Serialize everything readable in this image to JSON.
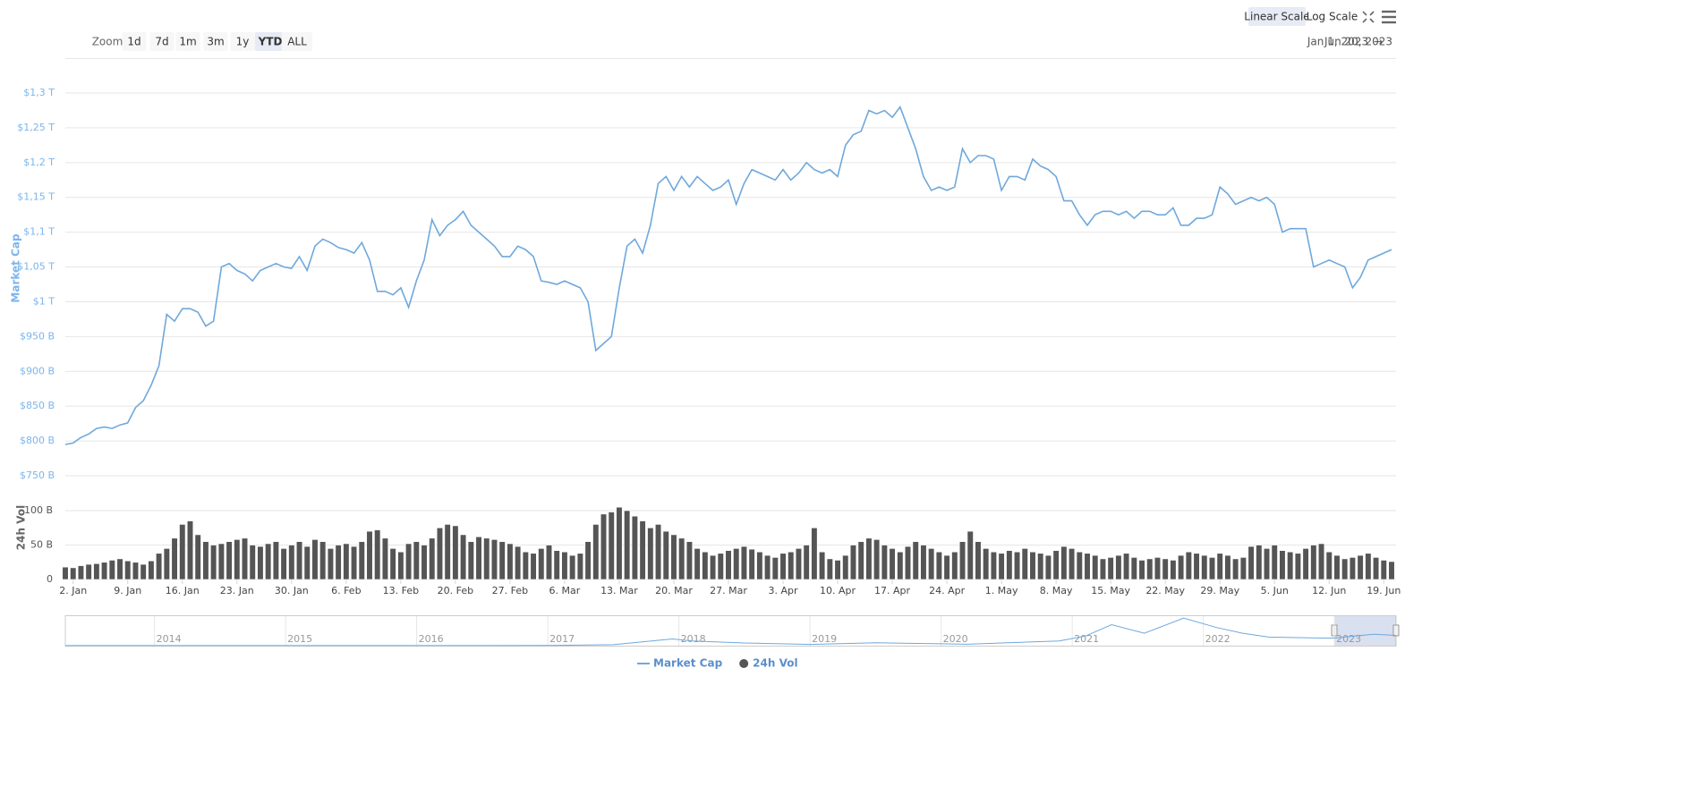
{
  "toolbar": {
    "zoom_label": "Zoom",
    "zoom_buttons": [
      "1d",
      "7d",
      "1m",
      "3m",
      "1y",
      "YTD",
      "ALL"
    ],
    "active_zoom": "YTD",
    "scale_buttons": [
      "Linear Scale",
      "Log Scale"
    ],
    "active_scale": "Linear Scale",
    "range_from": "Jan 1, 2023",
    "range_arrow": "→",
    "range_to": "Jun 20, 2023"
  },
  "chart_data": [
    {
      "type": "line",
      "y_label": "Market Cap",
      "y2_label": "24h Vol",
      "grid": true,
      "x": [
        "2023-01-01",
        "2023-01-02",
        "2023-01-03",
        "2023-01-04",
        "2023-01-05",
        "2023-01-06",
        "2023-01-07",
        "2023-01-08",
        "2023-01-09",
        "2023-01-10",
        "2023-01-11",
        "2023-01-12",
        "2023-01-13",
        "2023-01-14",
        "2023-01-15",
        "2023-01-16",
        "2023-01-17",
        "2023-01-18",
        "2023-01-19",
        "2023-01-20",
        "2023-01-21",
        "2023-01-22",
        "2023-01-23",
        "2023-01-24",
        "2023-01-25",
        "2023-01-26",
        "2023-01-27",
        "2023-01-28",
        "2023-01-29",
        "2023-01-30",
        "2023-01-31",
        "2023-02-01",
        "2023-02-02",
        "2023-02-03",
        "2023-02-04",
        "2023-02-05",
        "2023-02-06",
        "2023-02-07",
        "2023-02-08",
        "2023-02-09",
        "2023-02-10",
        "2023-02-11",
        "2023-02-12",
        "2023-02-13",
        "2023-02-14",
        "2023-02-15",
        "2023-02-16",
        "2023-02-17",
        "2023-02-18",
        "2023-02-19",
        "2023-02-20",
        "2023-02-21",
        "2023-02-22",
        "2023-02-23",
        "2023-02-24",
        "2023-02-25",
        "2023-02-26",
        "2023-02-27",
        "2023-02-28",
        "2023-03-01",
        "2023-03-02",
        "2023-03-03",
        "2023-03-04",
        "2023-03-05",
        "2023-03-06",
        "2023-03-07",
        "2023-03-08",
        "2023-03-09",
        "2023-03-10",
        "2023-03-11",
        "2023-03-12",
        "2023-03-13",
        "2023-03-14",
        "2023-03-15",
        "2023-03-16",
        "2023-03-17",
        "2023-03-18",
        "2023-03-19",
        "2023-03-20",
        "2023-03-21",
        "2023-03-22",
        "2023-03-23",
        "2023-03-24",
        "2023-03-25",
        "2023-03-26",
        "2023-03-27",
        "2023-03-28",
        "2023-03-29",
        "2023-03-30",
        "2023-03-31",
        "2023-04-01",
        "2023-04-02",
        "2023-04-03",
        "2023-04-04",
        "2023-04-05",
        "2023-04-06",
        "2023-04-07",
        "2023-04-08",
        "2023-04-09",
        "2023-04-10",
        "2023-04-11",
        "2023-04-12",
        "2023-04-13",
        "2023-04-14",
        "2023-04-15",
        "2023-04-16",
        "2023-04-17",
        "2023-04-18",
        "2023-04-19",
        "2023-04-20",
        "2023-04-21",
        "2023-04-22",
        "2023-04-23",
        "2023-04-24",
        "2023-04-25",
        "2023-04-26",
        "2023-04-27",
        "2023-04-28",
        "2023-04-29",
        "2023-04-30",
        "2023-05-01",
        "2023-05-02",
        "2023-05-03",
        "2023-05-04",
        "2023-05-05",
        "2023-05-06",
        "2023-05-07",
        "2023-05-08",
        "2023-05-09",
        "2023-05-10",
        "2023-05-11",
        "2023-05-12",
        "2023-05-13",
        "2023-05-14",
        "2023-05-15",
        "2023-05-16",
        "2023-05-17",
        "2023-05-18",
        "2023-05-19",
        "2023-05-20",
        "2023-05-21",
        "2023-05-22",
        "2023-05-23",
        "2023-05-24",
        "2023-05-25",
        "2023-05-26",
        "2023-05-27",
        "2023-05-28",
        "2023-05-29",
        "2023-05-30",
        "2023-05-31",
        "2023-06-01",
        "2023-06-02",
        "2023-06-03",
        "2023-06-04",
        "2023-06-05",
        "2023-06-06",
        "2023-06-07",
        "2023-06-08",
        "2023-06-09",
        "2023-06-10",
        "2023-06-11",
        "2023-06-12",
        "2023-06-13",
        "2023-06-14",
        "2023-06-15",
        "2023-06-16",
        "2023-06-17",
        "2023-06-18",
        "2023-06-19",
        "2023-06-20"
      ],
      "xlim": [
        "2023-01-01",
        "2023-06-20"
      ],
      "xticks": [
        {
          "value": "2023-01-02",
          "label": "2. Jan"
        },
        {
          "value": "2023-01-09",
          "label": "9. Jan"
        },
        {
          "value": "2023-01-16",
          "label": "16. Jan"
        },
        {
          "value": "2023-01-23",
          "label": "23. Jan"
        },
        {
          "value": "2023-01-30",
          "label": "30. Jan"
        },
        {
          "value": "2023-02-06",
          "label": "6. Feb"
        },
        {
          "value": "2023-02-13",
          "label": "13. Feb"
        },
        {
          "value": "2023-02-20",
          "label": "20. Feb"
        },
        {
          "value": "2023-02-27",
          "label": "27. Feb"
        },
        {
          "value": "2023-03-06",
          "label": "6. Mar"
        },
        {
          "value": "2023-03-13",
          "label": "13. Mar"
        },
        {
          "value": "2023-03-20",
          "label": "20. Mar"
        },
        {
          "value": "2023-03-27",
          "label": "27. Mar"
        },
        {
          "value": "2023-04-03",
          "label": "3. Apr"
        },
        {
          "value": "2023-04-10",
          "label": "10. Apr"
        },
        {
          "value": "2023-04-17",
          "label": "17. Apr"
        },
        {
          "value": "2023-04-24",
          "label": "24. Apr"
        },
        {
          "value": "2023-05-01",
          "label": "1. May"
        },
        {
          "value": "2023-05-08",
          "label": "8. May"
        },
        {
          "value": "2023-05-15",
          "label": "15. May"
        },
        {
          "value": "2023-05-22",
          "label": "22. May"
        },
        {
          "value": "2023-05-29",
          "label": "29. May"
        },
        {
          "value": "2023-06-05",
          "label": "5. Jun"
        },
        {
          "value": "2023-06-12",
          "label": "12. Jun"
        },
        {
          "value": "2023-06-19",
          "label": "19. Jun"
        }
      ],
      "ylim": [
        750,
        1300
      ],
      "yticks": [
        {
          "value": 750,
          "label": "$750 B"
        },
        {
          "value": 800,
          "label": "$800 B"
        },
        {
          "value": 850,
          "label": "$850 B"
        },
        {
          "value": 900,
          "label": "$900 B"
        },
        {
          "value": 950,
          "label": "$950 B"
        },
        {
          "value": 1000,
          "label": "$1 T"
        },
        {
          "value": 1050,
          "label": "$1,05 T"
        },
        {
          "value": 1100,
          "label": "$1,1 T"
        },
        {
          "value": 1150,
          "label": "$1,15 T"
        },
        {
          "value": 1200,
          "label": "$1,2 T"
        },
        {
          "value": 1250,
          "label": "$1,25 T"
        },
        {
          "value": 1300,
          "label": "$1,3 T"
        }
      ],
      "y2lim": [
        0,
        100
      ],
      "y2ticks": [
        0,
        {
          "value": 50,
          "label": "50 B"
        },
        {
          "value": 100,
          "label": "100 B"
        }
      ],
      "series": [
        {
          "name": "Market Cap",
          "type": "line",
          "color": "#6fa8dc",
          "values": [
            795,
            797,
            805,
            810,
            818,
            820,
            818,
            823,
            826,
            848,
            858,
            880,
            908,
            982,
            972,
            990,
            990,
            985,
            965,
            972,
            1050,
            1055,
            1045,
            1040,
            1030,
            1045,
            1050,
            1055,
            1050,
            1048,
            1065,
            1045,
            1080,
            1090,
            1085,
            1078,
            1075,
            1070,
            1085,
            1060,
            1015,
            1015,
            1010,
            1020,
            992,
            1030,
            1060,
            1118,
            1095,
            1110,
            1118,
            1130,
            1110,
            1100,
            1090,
            1080,
            1065,
            1065,
            1080,
            1075,
            1065,
            1030,
            1028,
            1025,
            1030,
            1025,
            1020,
            1000,
            930,
            940,
            950,
            1020,
            1080,
            1090,
            1070,
            1110,
            1170,
            1180,
            1160,
            1180,
            1165,
            1180,
            1170,
            1160,
            1165,
            1175,
            1140,
            1170,
            1190,
            1185,
            1180,
            1175,
            1190,
            1175,
            1185,
            1200,
            1190,
            1185,
            1190,
            1180,
            1225,
            1240,
            1245,
            1275,
            1270,
            1275,
            1265,
            1280,
            1250,
            1220,
            1180,
            1160,
            1165,
            1160,
            1165,
            1220,
            1200,
            1210,
            1210,
            1205,
            1160,
            1180,
            1180,
            1175,
            1205,
            1195,
            1190,
            1180,
            1145,
            1145,
            1125,
            1110,
            1125,
            1130,
            1130,
            1125,
            1130,
            1120,
            1130,
            1130,
            1125,
            1125,
            1135,
            1110,
            1110,
            1120,
            1120,
            1125,
            1165,
            1155,
            1140,
            1145,
            1150,
            1145,
            1150,
            1140,
            1100,
            1105,
            1105,
            1105,
            1050,
            1055,
            1060,
            1055,
            1050,
            1020,
            1035,
            1060,
            1065,
            1070,
            1075
          ]
        },
        {
          "name": "24h Vol",
          "type": "bar",
          "axis": "y2",
          "color": "#555555",
          "values": [
            18,
            17,
            20,
            22,
            23,
            25,
            28,
            30,
            27,
            25,
            22,
            27,
            38,
            45,
            60,
            80,
            85,
            65,
            55,
            50,
            52,
            55,
            58,
            60,
            50,
            48,
            52,
            55,
            45,
            50,
            55,
            48,
            58,
            55,
            45,
            50,
            52,
            48,
            55,
            70,
            72,
            60,
            45,
            40,
            52,
            55,
            50,
            60,
            75,
            80,
            78,
            65,
            55,
            62,
            60,
            58,
            55,
            52,
            48,
            40,
            38,
            45,
            50,
            42,
            40,
            35,
            38,
            55,
            80,
            95,
            98,
            105,
            100,
            92,
            85,
            75,
            80,
            70,
            65,
            60,
            55,
            45,
            40,
            35,
            38,
            42,
            45,
            48,
            44,
            40,
            35,
            32,
            38,
            40,
            45,
            50,
            75,
            40,
            30,
            28,
            35,
            50,
            55,
            60,
            58,
            50,
            45,
            40,
            48,
            55,
            50,
            45,
            40,
            35,
            40,
            55,
            70,
            55,
            45,
            40,
            38,
            42,
            40,
            45,
            40,
            38,
            35,
            42,
            48,
            45,
            40,
            38,
            35,
            30,
            32,
            35,
            38,
            32,
            28,
            30,
            32,
            30,
            28,
            35,
            40,
            38,
            35,
            32,
            38,
            35,
            30,
            32,
            48,
            50,
            45,
            50,
            42,
            40,
            38,
            45,
            50,
            52,
            40,
            35,
            30,
            32,
            35,
            38,
            32,
            28,
            26
          ]
        }
      ]
    },
    {
      "type": "line",
      "color": "#6fa8dc",
      "x": [
        2013.32,
        2014,
        2015,
        2016,
        2017,
        2017.5,
        2017.95,
        2018.1,
        2018.5,
        2019,
        2019.5,
        2020,
        2020.2,
        2020.9,
        2021.1,
        2021.3,
        2021.55,
        2021.85,
        2022.1,
        2022.3,
        2022.5,
        2022.9,
        2023,
        2023.3,
        2023.47
      ],
      "values": [
        10,
        10,
        5,
        7,
        18,
        100,
        700,
        500,
        280,
        130,
        300,
        200,
        150,
        500,
        1000,
        2200,
        1300,
        2900,
        1900,
        1300,
        900,
        800,
        800,
        1200,
        1080
      ],
      "xlim": [
        2013.32,
        2023.47
      ],
      "ylim": [
        0,
        3000
      ],
      "xticks": [
        2014,
        2015,
        2016,
        2017,
        2018,
        2019,
        2020,
        2021,
        2022,
        2023
      ]
    }
  ]
}
